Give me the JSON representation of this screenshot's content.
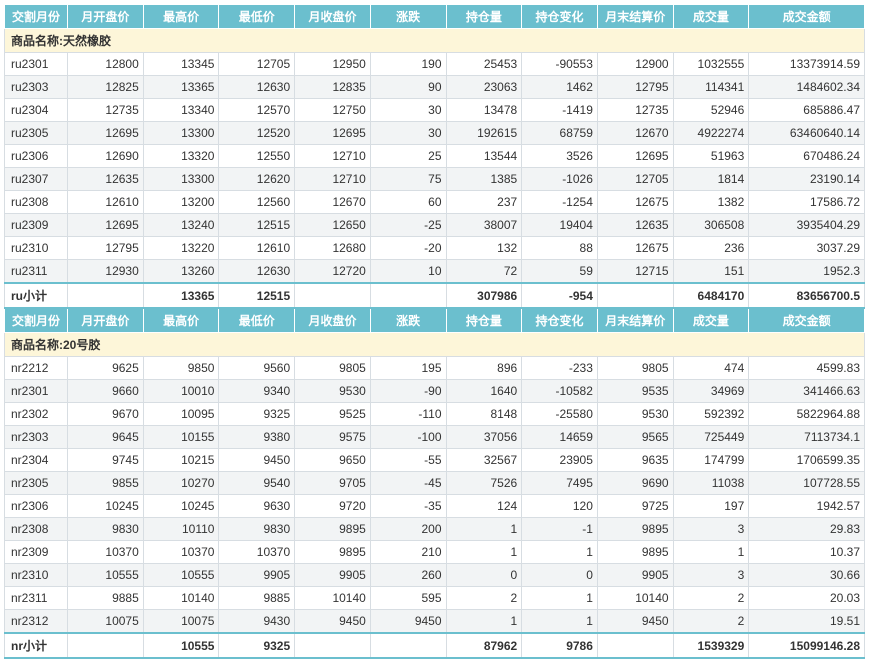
{
  "headers": [
    "交割月份",
    "月开盘价",
    "最高价",
    "最低价",
    "月收盘价",
    "涨跌",
    "持仓量",
    "持仓变化",
    "月末结算价",
    "成交量",
    "成交金额"
  ],
  "sections": [
    {
      "group_label": "商品名称:天然橡胶",
      "rows": [
        [
          "ru2301",
          "12800",
          "13345",
          "12705",
          "12950",
          "190",
          "25453",
          "-90553",
          "12900",
          "1032555",
          "13373914.59"
        ],
        [
          "ru2303",
          "12825",
          "13365",
          "12630",
          "12835",
          "90",
          "23063",
          "1462",
          "12795",
          "114341",
          "1484602.34"
        ],
        [
          "ru2304",
          "12735",
          "13340",
          "12570",
          "12750",
          "30",
          "13478",
          "-1419",
          "12735",
          "52946",
          "685886.47"
        ],
        [
          "ru2305",
          "12695",
          "13300",
          "12520",
          "12695",
          "30",
          "192615",
          "68759",
          "12670",
          "4922274",
          "63460640.14"
        ],
        [
          "ru2306",
          "12690",
          "13320",
          "12550",
          "12710",
          "25",
          "13544",
          "3526",
          "12695",
          "51963",
          "670486.24"
        ],
        [
          "ru2307",
          "12635",
          "13300",
          "12620",
          "12710",
          "75",
          "1385",
          "-1026",
          "12705",
          "1814",
          "23190.14"
        ],
        [
          "ru2308",
          "12610",
          "13200",
          "12560",
          "12670",
          "60",
          "237",
          "-1254",
          "12675",
          "1382",
          "17586.72"
        ],
        [
          "ru2309",
          "12695",
          "13240",
          "12515",
          "12650",
          "-25",
          "38007",
          "19404",
          "12635",
          "306508",
          "3935404.29"
        ],
        [
          "ru2310",
          "12795",
          "13220",
          "12610",
          "12680",
          "-20",
          "132",
          "88",
          "12675",
          "236",
          "3037.29"
        ],
        [
          "ru2311",
          "12930",
          "13260",
          "12630",
          "12720",
          "10",
          "72",
          "59",
          "12715",
          "151",
          "1952.3"
        ]
      ],
      "subtotal": [
        "ru小计",
        "",
        "13365",
        "12515",
        "",
        "",
        "307986",
        "-954",
        "",
        "6484170",
        "83656700.5"
      ]
    },
    {
      "group_label": "商品名称:20号胶",
      "rows": [
        [
          "nr2212",
          "9625",
          "9850",
          "9560",
          "9805",
          "195",
          "896",
          "-233",
          "9805",
          "474",
          "4599.83"
        ],
        [
          "nr2301",
          "9660",
          "10010",
          "9340",
          "9530",
          "-90",
          "1640",
          "-10582",
          "9535",
          "34969",
          "341466.63"
        ],
        [
          "nr2302",
          "9670",
          "10095",
          "9325",
          "9525",
          "-110",
          "8148",
          "-25580",
          "9530",
          "592392",
          "5822964.88"
        ],
        [
          "nr2303",
          "9645",
          "10155",
          "9380",
          "9575",
          "-100",
          "37056",
          "14659",
          "9565",
          "725449",
          "7113734.1"
        ],
        [
          "nr2304",
          "9745",
          "10215",
          "9450",
          "9650",
          "-55",
          "32567",
          "23905",
          "9635",
          "174799",
          "1706599.35"
        ],
        [
          "nr2305",
          "9855",
          "10270",
          "9540",
          "9705",
          "-45",
          "7526",
          "7495",
          "9690",
          "11038",
          "107728.55"
        ],
        [
          "nr2306",
          "10245",
          "10245",
          "9630",
          "9720",
          "-35",
          "124",
          "120",
          "9725",
          "197",
          "1942.57"
        ],
        [
          "nr2308",
          "9830",
          "10110",
          "9830",
          "9895",
          "200",
          "1",
          "-1",
          "9895",
          "3",
          "29.83"
        ],
        [
          "nr2309",
          "10370",
          "10370",
          "10370",
          "9895",
          "210",
          "1",
          "1",
          "9895",
          "1",
          "10.37"
        ],
        [
          "nr2310",
          "10555",
          "10555",
          "9905",
          "9905",
          "260",
          "0",
          "0",
          "9905",
          "3",
          "30.66"
        ],
        [
          "nr2311",
          "9885",
          "10140",
          "9885",
          "10140",
          "595",
          "2",
          "1",
          "10140",
          "2",
          "20.03"
        ],
        [
          "nr2312",
          "10075",
          "10075",
          "9430",
          "9450",
          "9450",
          "1",
          "1",
          "9450",
          "2",
          "19.51"
        ]
      ],
      "subtotal": [
        "nr小计",
        "",
        "10555",
        "9325",
        "",
        "",
        "87962",
        "9786",
        "",
        "1539329",
        "15099146.28"
      ]
    }
  ],
  "colors": {
    "header_bg": "#6bbfce",
    "header_fg": "#ffffff",
    "group_bg": "#fdf6d9",
    "alt_bg": "#f2f4f5",
    "border": "#d7dde2"
  }
}
